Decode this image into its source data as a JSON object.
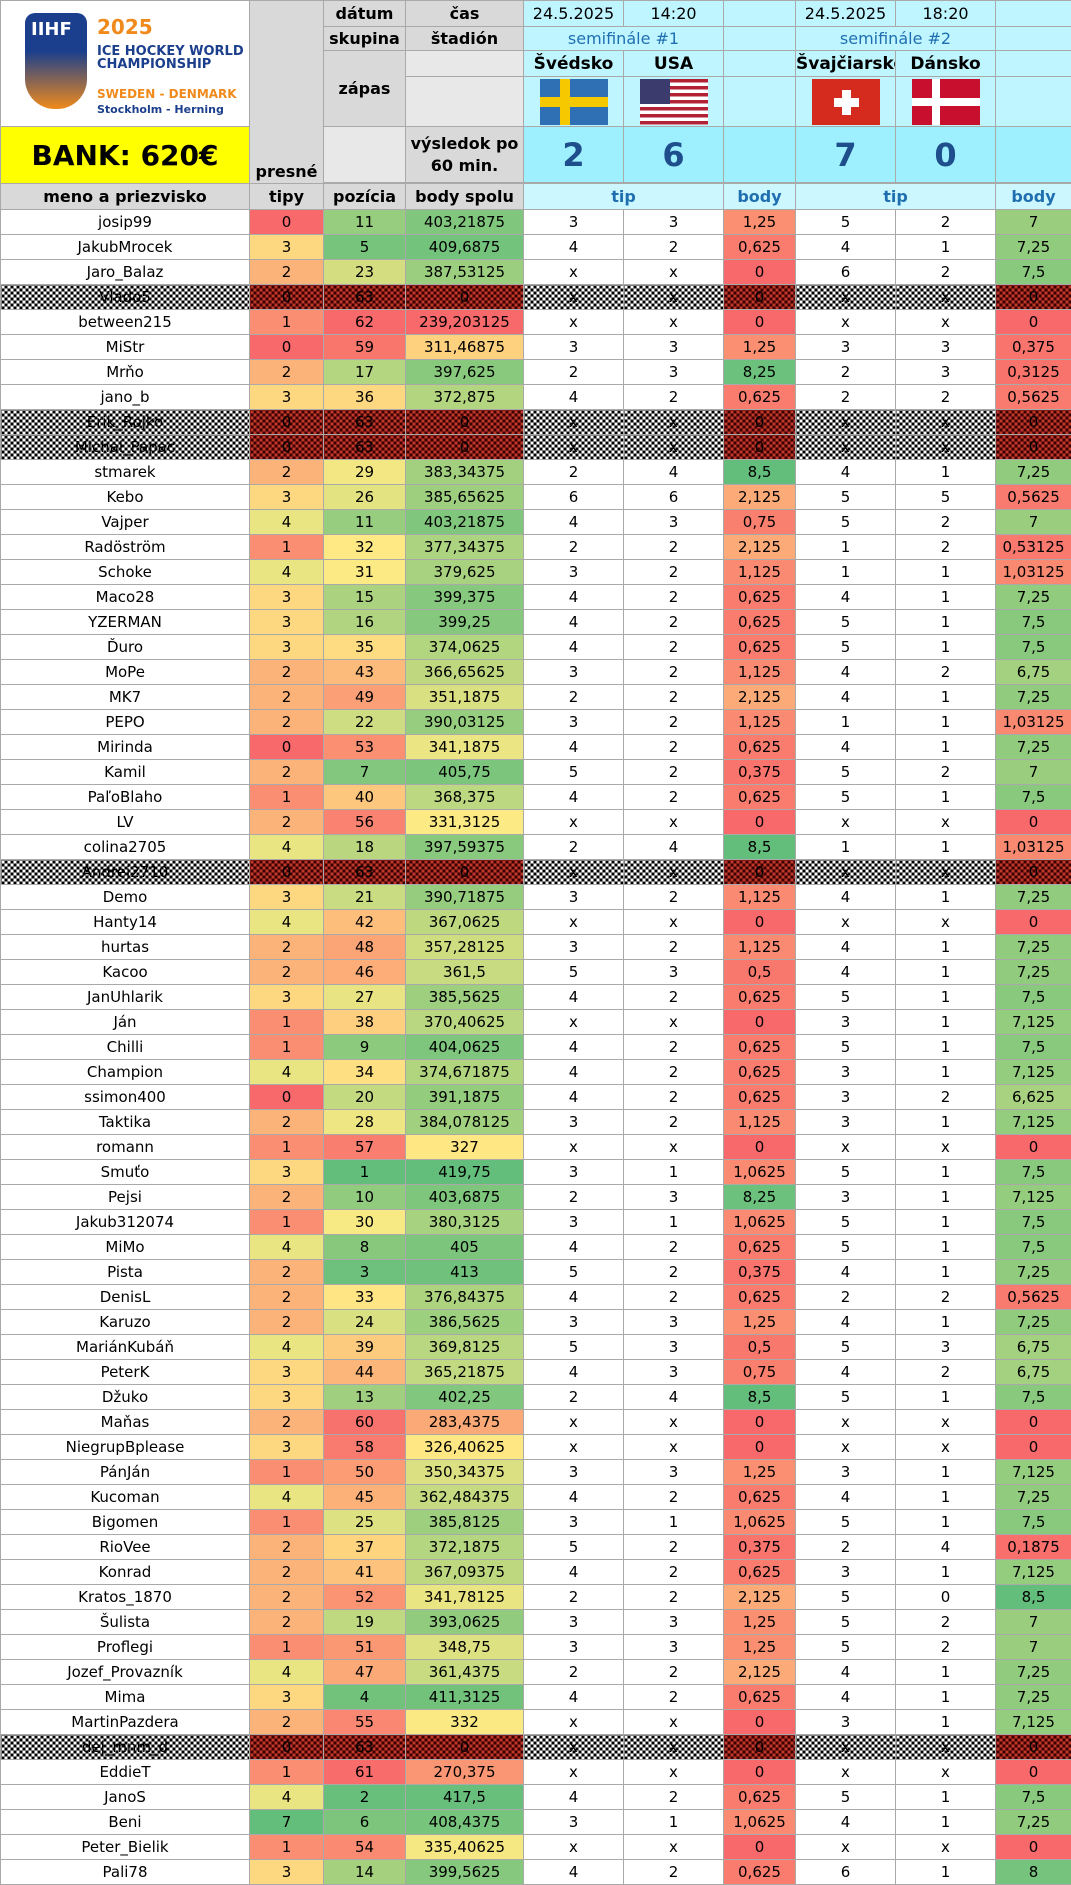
{
  "header": {
    "bank_label": "BANK: 620€",
    "logo": {
      "brand": "IIHF",
      "year": "2025",
      "line1": "ICE HOCKEY WORLD CHAMPIONSHIP",
      "line2": "SWEDEN - DENMARK",
      "line3": "Stockholm - Herning"
    },
    "labels": {
      "datum": "dátum",
      "cas": "čas",
      "skupina": "skupina",
      "stadion": "štadión",
      "zapas": "zápas",
      "vysledok": "výsledok po 60 min.",
      "presne_tipy": "presné tipy",
      "meno": "meno a priezvisko",
      "tipy": "tipy",
      "pozicia": "pozícia",
      "body_spolu": "body spolu",
      "tip": "tip",
      "body": "body"
    },
    "matches": [
      {
        "date": "24.5.2025",
        "time": "14:20",
        "group": "semifinále #1",
        "home": "Švédsko",
        "away": "USA",
        "home_flag": "sweden-flag-icon",
        "away_flag": "usa-flag-icon",
        "home_score": "2",
        "away_score": "6"
      },
      {
        "date": "24.5.2025",
        "time": "18:20",
        "group": "semifinále #2",
        "home": "Švajčiarsko",
        "away": "Dánsko",
        "home_flag": "switzerland-flag-icon",
        "away_flag": "denmark-flag-icon",
        "home_score": "7",
        "away_score": "0"
      }
    ]
  },
  "colors": {
    "green": "#63be7b",
    "yellow": "#ffeb84",
    "red": "#f8696b",
    "header_gray": "#d9d9d9",
    "cyan": "#bff5ff",
    "bank": "#ffff00"
  },
  "rows": [
    [
      "josip99",
      "0",
      "11",
      "403,21875",
      "3",
      "3",
      "1,25",
      "5",
      "2",
      "7"
    ],
    [
      "JakubMrocek",
      "3",
      "5",
      "409,6875",
      "4",
      "2",
      "0,625",
      "4",
      "1",
      "7,25"
    ],
    [
      "Jaro_Balaz",
      "2",
      "23",
      "387,53125",
      "x",
      "x",
      "0",
      "6",
      "2",
      "7,5"
    ],
    [
      "Vlado5",
      "0",
      "63",
      "0",
      "x",
      "x",
      "0",
      "x",
      "x",
      "0"
    ],
    [
      "between215",
      "1",
      "62",
      "239,203125",
      "x",
      "x",
      "0",
      "x",
      "x",
      "0"
    ],
    [
      "MiStr",
      "0",
      "59",
      "311,46875",
      "3",
      "3",
      "1,25",
      "3",
      "3",
      "0,375"
    ],
    [
      "Mrňo",
      "2",
      "17",
      "397,625",
      "2",
      "3",
      "8,25",
      "2",
      "3",
      "0,3125"
    ],
    [
      "jano_b",
      "3",
      "36",
      "372,875",
      "4",
      "2",
      "0,625",
      "2",
      "2",
      "0,5625"
    ],
    [
      "Erik_Rojko",
      "0",
      "63",
      "0",
      "x",
      "x",
      "0",
      "x",
      "x",
      "0"
    ],
    [
      "Michal_Papac",
      "0",
      "63",
      "0",
      "x",
      "x",
      "0",
      "x",
      "x",
      "0"
    ],
    [
      "stmarek",
      "2",
      "29",
      "383,34375",
      "2",
      "4",
      "8,5",
      "4",
      "1",
      "7,25"
    ],
    [
      "Kebo",
      "3",
      "26",
      "385,65625",
      "6",
      "6",
      "2,125",
      "5",
      "5",
      "0,5625"
    ],
    [
      "Vajper",
      "4",
      "11",
      "403,21875",
      "4",
      "3",
      "0,75",
      "5",
      "2",
      "7"
    ],
    [
      "Radöström",
      "1",
      "32",
      "377,34375",
      "2",
      "2",
      "2,125",
      "1",
      "2",
      "0,53125"
    ],
    [
      "Schoke",
      "4",
      "31",
      "379,625",
      "3",
      "2",
      "1,125",
      "1",
      "1",
      "1,03125"
    ],
    [
      "Maco28",
      "3",
      "15",
      "399,375",
      "4",
      "2",
      "0,625",
      "4",
      "1",
      "7,25"
    ],
    [
      "YZERMAN",
      "3",
      "16",
      "399,25",
      "4",
      "2",
      "0,625",
      "5",
      "1",
      "7,5"
    ],
    [
      "Ďuro",
      "3",
      "35",
      "374,0625",
      "4",
      "2",
      "0,625",
      "5",
      "1",
      "7,5"
    ],
    [
      "MoPe",
      "2",
      "43",
      "366,65625",
      "3",
      "2",
      "1,125",
      "4",
      "2",
      "6,75"
    ],
    [
      "MK7",
      "2",
      "49",
      "351,1875",
      "2",
      "2",
      "2,125",
      "4",
      "1",
      "7,25"
    ],
    [
      "PEPO",
      "2",
      "22",
      "390,03125",
      "3",
      "2",
      "1,125",
      "1",
      "1",
      "1,03125"
    ],
    [
      "Mirinda",
      "0",
      "53",
      "341,1875",
      "4",
      "2",
      "0,625",
      "4",
      "1",
      "7,25"
    ],
    [
      "Kamil",
      "2",
      "7",
      "405,75",
      "5",
      "2",
      "0,375",
      "5",
      "2",
      "7"
    ],
    [
      "PaľoBlaho",
      "1",
      "40",
      "368,375",
      "4",
      "2",
      "0,625",
      "5",
      "1",
      "7,5"
    ],
    [
      "LV",
      "2",
      "56",
      "331,3125",
      "x",
      "x",
      "0",
      "x",
      "x",
      "0"
    ],
    [
      "colina2705",
      "4",
      "18",
      "397,59375",
      "2",
      "4",
      "8,5",
      "1",
      "1",
      "1,03125"
    ],
    [
      "Andrej2710",
      "0",
      "63",
      "0",
      "x",
      "x",
      "0",
      "x",
      "x",
      "0"
    ],
    [
      "Demo",
      "3",
      "21",
      "390,71875",
      "3",
      "2",
      "1,125",
      "4",
      "1",
      "7,25"
    ],
    [
      "Hanty14",
      "4",
      "42",
      "367,0625",
      "x",
      "x",
      "0",
      "x",
      "x",
      "0"
    ],
    [
      "hurtas",
      "2",
      "48",
      "357,28125",
      "3",
      "2",
      "1,125",
      "4",
      "1",
      "7,25"
    ],
    [
      "Kacoo",
      "2",
      "46",
      "361,5",
      "5",
      "3",
      "0,5",
      "4",
      "1",
      "7,25"
    ],
    [
      "JanUhlarik",
      "3",
      "27",
      "385,5625",
      "4",
      "2",
      "0,625",
      "5",
      "1",
      "7,5"
    ],
    [
      "Ján",
      "1",
      "38",
      "370,40625",
      "x",
      "x",
      "0",
      "3",
      "1",
      "7,125"
    ],
    [
      "Chilli",
      "1",
      "9",
      "404,0625",
      "4",
      "2",
      "0,625",
      "5",
      "1",
      "7,5"
    ],
    [
      "Champion",
      "4",
      "34",
      "374,671875",
      "4",
      "2",
      "0,625",
      "3",
      "1",
      "7,125"
    ],
    [
      "ssimon400",
      "0",
      "20",
      "391,1875",
      "4",
      "2",
      "0,625",
      "3",
      "2",
      "6,625"
    ],
    [
      "Taktika",
      "2",
      "28",
      "384,078125",
      "3",
      "2",
      "1,125",
      "3",
      "1",
      "7,125"
    ],
    [
      "romann",
      "1",
      "57",
      "327",
      "x",
      "x",
      "0",
      "x",
      "x",
      "0"
    ],
    [
      "Smuťo",
      "3",
      "1",
      "419,75",
      "3",
      "1",
      "1,0625",
      "5",
      "1",
      "7,5"
    ],
    [
      "Pejsi",
      "2",
      "10",
      "403,6875",
      "2",
      "3",
      "8,25",
      "3",
      "1",
      "7,125"
    ],
    [
      "Jakub312074",
      "1",
      "30",
      "380,3125",
      "3",
      "1",
      "1,0625",
      "5",
      "1",
      "7,5"
    ],
    [
      "MiMo",
      "4",
      "8",
      "405",
      "4",
      "2",
      "0,625",
      "5",
      "1",
      "7,5"
    ],
    [
      "Pista",
      "2",
      "3",
      "413",
      "5",
      "2",
      "0,375",
      "4",
      "1",
      "7,25"
    ],
    [
      "DenisL",
      "2",
      "33",
      "376,84375",
      "4",
      "2",
      "0,625",
      "2",
      "2",
      "0,5625"
    ],
    [
      "Karuzo",
      "2",
      "24",
      "386,5625",
      "3",
      "3",
      "1,25",
      "4",
      "1",
      "7,25"
    ],
    [
      "MariánKubáň",
      "4",
      "39",
      "369,8125",
      "5",
      "3",
      "0,5",
      "5",
      "3",
      "6,75"
    ],
    [
      "PeterK",
      "3",
      "44",
      "365,21875",
      "4",
      "3",
      "0,75",
      "4",
      "2",
      "6,75"
    ],
    [
      "Džuko",
      "3",
      "13",
      "402,25",
      "2",
      "4",
      "8,5",
      "5",
      "1",
      "7,5"
    ],
    [
      "Maňas",
      "2",
      "60",
      "283,4375",
      "x",
      "x",
      "0",
      "x",
      "x",
      "0"
    ],
    [
      "NiegrupBplease",
      "3",
      "58",
      "326,40625",
      "x",
      "x",
      "0",
      "x",
      "x",
      "0"
    ],
    [
      "PánJán",
      "1",
      "50",
      "350,34375",
      "3",
      "3",
      "1,25",
      "3",
      "1",
      "7,125"
    ],
    [
      "Kucoman",
      "4",
      "45",
      "362,484375",
      "4",
      "2",
      "0,625",
      "4",
      "1",
      "7,25"
    ],
    [
      "Bigomen",
      "1",
      "25",
      "385,8125",
      "3",
      "1",
      "1,0625",
      "5",
      "1",
      "7,5"
    ],
    [
      "RioVee",
      "2",
      "37",
      "372,1875",
      "5",
      "2",
      "0,375",
      "2",
      "4",
      "0,1875"
    ],
    [
      "Konrad",
      "2",
      "41",
      "367,09375",
      "4",
      "2",
      "0,625",
      "3",
      "1",
      "7,125"
    ],
    [
      "Kratos_1870",
      "2",
      "52",
      "341,78125",
      "2",
      "2",
      "2,125",
      "5",
      "0",
      "8,5"
    ],
    [
      "Šulista",
      "2",
      "19",
      "393,0625",
      "3",
      "3",
      "1,25",
      "5",
      "2",
      "7"
    ],
    [
      "Proflegi",
      "1",
      "51",
      "348,75",
      "3",
      "3",
      "1,25",
      "5",
      "2",
      "7"
    ],
    [
      "Jozef_Provazník",
      "4",
      "47",
      "361,4375",
      "2",
      "2",
      "2,125",
      "4",
      "1",
      "7,25"
    ],
    [
      "Mima",
      "3",
      "4",
      "411,3125",
      "4",
      "2",
      "0,625",
      "4",
      "1",
      "7,25"
    ],
    [
      "MartinPazdera",
      "2",
      "55",
      "332",
      "x",
      "x",
      "0",
      "3",
      "1",
      "7,125"
    ],
    [
      "dej_mnm_d",
      "0",
      "63",
      "0",
      "x",
      "x",
      "0",
      "x",
      "x",
      "0"
    ],
    [
      "EddieT",
      "1",
      "61",
      "270,375",
      "x",
      "x",
      "0",
      "x",
      "x",
      "0"
    ],
    [
      "JanoS",
      "4",
      "2",
      "417,5",
      "4",
      "2",
      "0,625",
      "5",
      "1",
      "7,5"
    ],
    [
      "Beni",
      "7",
      "6",
      "408,4375",
      "3",
      "1",
      "1,0625",
      "4",
      "1",
      "7,25"
    ],
    [
      "Peter_Bielik",
      "1",
      "54",
      "335,40625",
      "x",
      "x",
      "0",
      "x",
      "x",
      "0"
    ],
    [
      "Pali78",
      "3",
      "14",
      "399,5625",
      "4",
      "2",
      "0,625",
      "6",
      "1",
      "8"
    ]
  ],
  "eliminated_rows": [
    3,
    8,
    9,
    26,
    61
  ]
}
